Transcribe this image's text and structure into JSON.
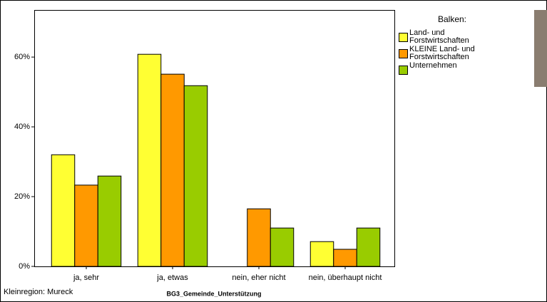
{
  "chart_data": {
    "type": "bar",
    "x_label": "BG3_Gemeinde_Unterstützung",
    "footnote": "Kleinregion: Mureck",
    "legend_title": "Balken:",
    "categories": [
      "ja, sehr",
      "ja, etwas",
      "nein, eher nicht",
      "nein, überhaupt nicht"
    ],
    "series": [
      {
        "name": "Land- und Forstwirtschaften",
        "color": "#ffff33",
        "values": [
          32.0,
          60.8,
          0,
          7.1
        ]
      },
      {
        "name": "KLEINE Land- und Forstwirtschaften",
        "color": "#ff9900",
        "values": [
          23.3,
          55.1,
          16.5,
          4.9
        ]
      },
      {
        "name": "Unternehmen",
        "color": "#99cc00",
        "values": [
          25.9,
          51.8,
          11.0,
          11.0
        ]
      }
    ],
    "ylim": [
      0,
      73.5
    ],
    "yticks": [
      {
        "value": 0,
        "label": "0%"
      },
      {
        "value": 20,
        "label": "20%"
      },
      {
        "value": 40,
        "label": "40%"
      },
      {
        "value": 60,
        "label": "60%"
      }
    ],
    "legend": "right"
  }
}
